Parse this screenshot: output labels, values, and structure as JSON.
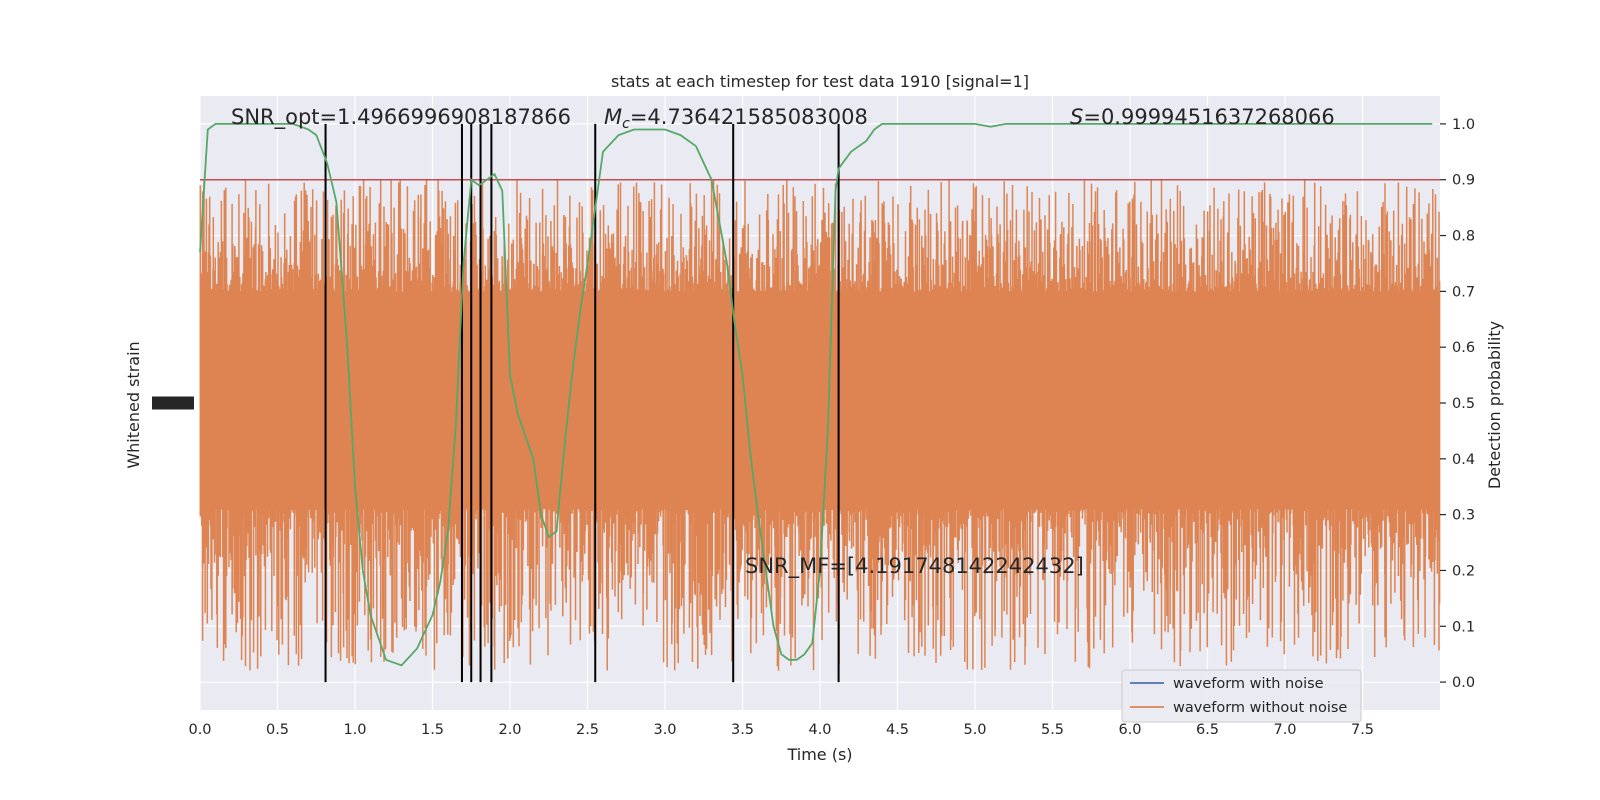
{
  "chart_data": {
    "type": "line",
    "title": "stats at each timestep for test data 1910 [signal=1]",
    "xlabel": "Time (s)",
    "ylabel_left": "Whitened strain",
    "ylabel_right": "Detection probability",
    "xlim": [
      0.0,
      8.0
    ],
    "ylim_right": [
      -0.05,
      1.05
    ],
    "x_ticks": [
      "0.0",
      "0.5",
      "1.0",
      "1.5",
      "2.0",
      "2.5",
      "3.0",
      "3.5",
      "4.0",
      "4.5",
      "5.0",
      "5.5",
      "6.0",
      "6.5",
      "7.0",
      "7.5"
    ],
    "right_ticks": [
      "0.0",
      "0.1",
      "0.2",
      "0.3",
      "0.4",
      "0.5",
      "0.6",
      "0.7",
      "0.8",
      "0.9",
      "1.0"
    ],
    "grid": true,
    "legend_position": "lower-right",
    "annotations": {
      "snr_opt": "SNR_opt=1.4966996908187866",
      "mc_symbol": "M",
      "mc_sub": "c",
      "mc_value": "=4.736421585083008",
      "s_symbol": "S",
      "s_value": "=0.9999451637268066",
      "snr_mf": "SNR_MF=[4.191748142242432]"
    },
    "threshold": 0.9,
    "threshold_color": "#c44e52",
    "series": [
      {
        "name": "waveform with noise",
        "color": "#4c72b0",
        "kind": "strain"
      },
      {
        "name": "waveform without noise",
        "color": "#dd8452",
        "kind": "strain",
        "band_core_prob": [
          0.31,
          0.7
        ],
        "spike_max_prob": 0.9,
        "spike_min_prob": 0.02
      },
      {
        "name": "detection probability",
        "color": "#55a868",
        "kind": "probability",
        "x": [
          0.0,
          0.05,
          0.1,
          0.2,
          0.3,
          0.4,
          0.5,
          0.6,
          0.7,
          0.75,
          0.82,
          0.88,
          0.95,
          1.0,
          1.05,
          1.1,
          1.15,
          1.2,
          1.3,
          1.4,
          1.5,
          1.55,
          1.6,
          1.65,
          1.7,
          1.75,
          1.8,
          1.85,
          1.9,
          1.95,
          2.0,
          2.05,
          2.1,
          2.15,
          2.2,
          2.25,
          2.3,
          2.35,
          2.4,
          2.45,
          2.5,
          2.55,
          2.6,
          2.7,
          2.8,
          2.9,
          3.0,
          3.1,
          3.2,
          3.3,
          3.4,
          3.45,
          3.5,
          3.55,
          3.6,
          3.65,
          3.7,
          3.75,
          3.8,
          3.85,
          3.9,
          3.95,
          4.0,
          4.05,
          4.1,
          4.12,
          4.2,
          4.3,
          4.35,
          4.4,
          4.5,
          4.7,
          5.0,
          5.1,
          5.2,
          5.5,
          6.0,
          6.5,
          7.0,
          7.5,
          7.95
        ],
        "y": [
          0.77,
          0.99,
          1.0,
          1.0,
          1.0,
          1.0,
          1.0,
          1.0,
          0.99,
          0.98,
          0.93,
          0.86,
          0.6,
          0.35,
          0.2,
          0.12,
          0.08,
          0.04,
          0.03,
          0.06,
          0.12,
          0.18,
          0.27,
          0.46,
          0.75,
          0.9,
          0.89,
          0.9,
          0.91,
          0.88,
          0.55,
          0.48,
          0.44,
          0.4,
          0.3,
          0.26,
          0.27,
          0.42,
          0.55,
          0.66,
          0.75,
          0.85,
          0.95,
          0.98,
          0.99,
          0.99,
          0.99,
          0.98,
          0.96,
          0.9,
          0.75,
          0.64,
          0.55,
          0.41,
          0.3,
          0.2,
          0.1,
          0.05,
          0.04,
          0.04,
          0.05,
          0.07,
          0.2,
          0.45,
          0.88,
          0.92,
          0.95,
          0.97,
          0.99,
          1.0,
          1.0,
          1.0,
          1.0,
          0.995,
          1.0,
          1.0,
          1.0,
          1.0,
          1.0,
          1.0,
          1.0
        ]
      }
    ],
    "vlines_x": [
      0.81,
      1.69,
      1.75,
      1.81,
      1.88,
      2.55,
      3.44,
      4.12
    ],
    "vline_ylim": [
      0.0,
      1.0
    ]
  }
}
